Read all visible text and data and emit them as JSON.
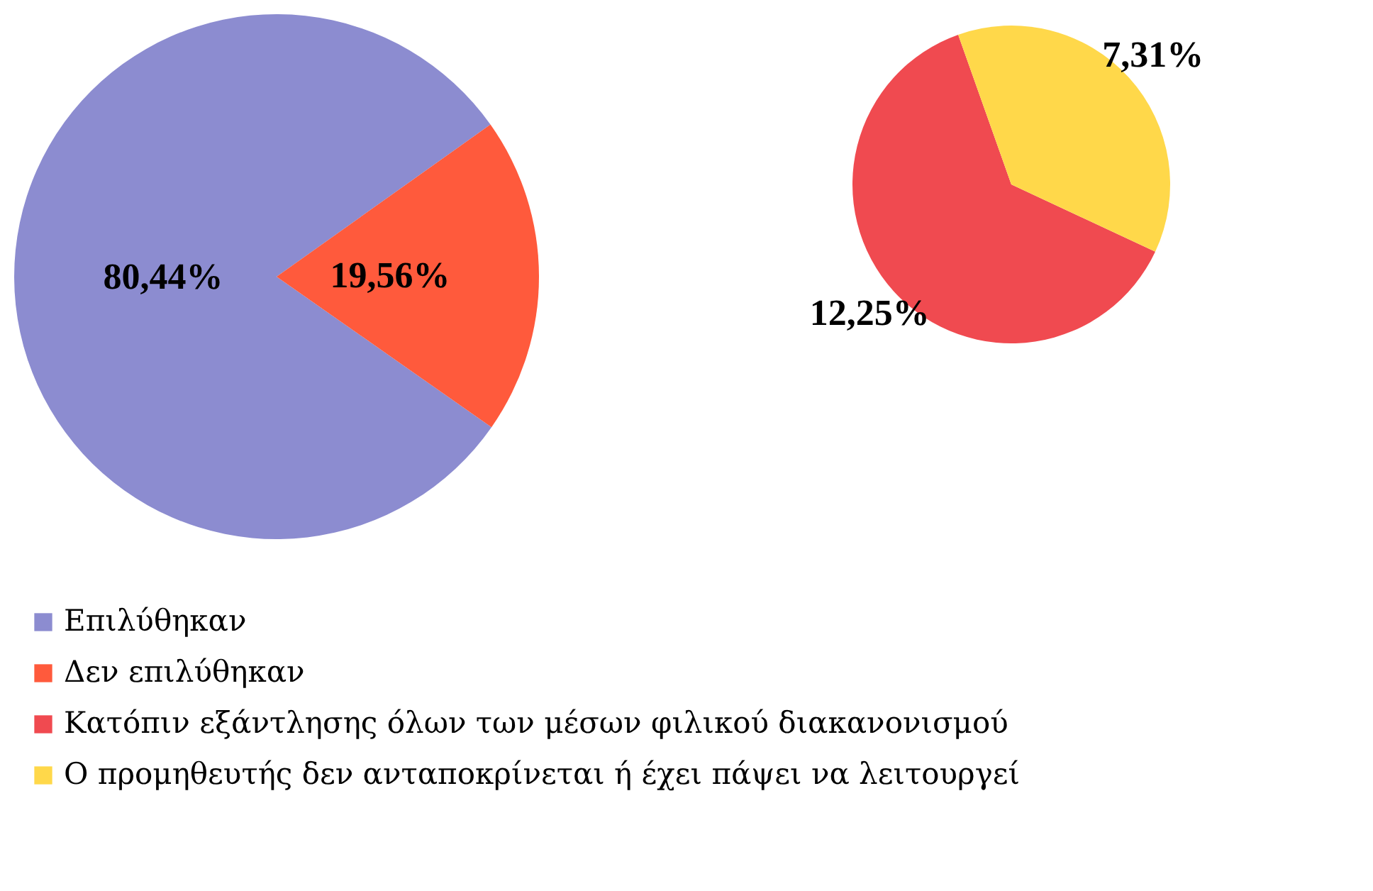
{
  "chart_data": [
    {
      "type": "pie",
      "categories": [
        "Επιλύθηκαν",
        "Δεν επιλύθηκαν"
      ],
      "values": [
        80.44,
        19.56
      ],
      "colors": [
        "#8c8cd0",
        "#ff5a3c"
      ],
      "value_labels": [
        "80,44%",
        "19,56%"
      ],
      "legend": "bottom"
    },
    {
      "type": "pie",
      "categories": [
        "Κατόπιν εξάντλησης όλων των μέσων φιλικού διακανονισμού",
        "Ο προμηθευτής δεν ανταποκρίνεται ή έχει πάψει να λειτουργεί"
      ],
      "values": [
        12.25,
        7.31
      ],
      "colors": [
        "#f04a50",
        "#ffd84a"
      ],
      "value_labels": [
        "12,25%",
        "7,31%"
      ],
      "legend": "bottom"
    }
  ]
}
